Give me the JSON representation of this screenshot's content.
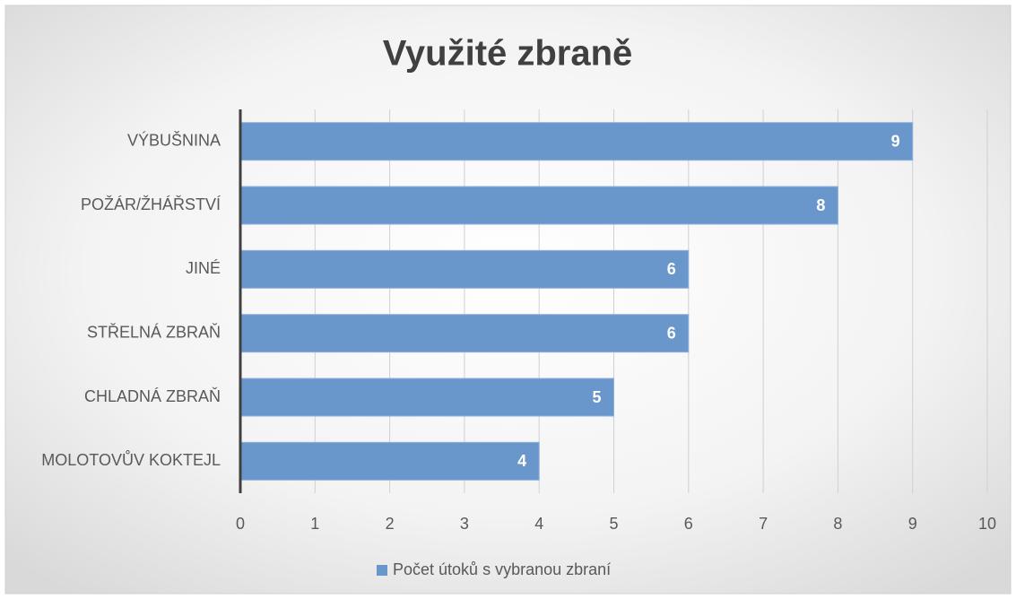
{
  "chart_data": {
    "type": "bar",
    "orientation": "horizontal",
    "title": "Využité zbraně",
    "categories": [
      "VÝBUŠNINA",
      "POŽÁR/ŽHÁŘSTVÍ",
      "JINÉ",
      "STŘELNÁ ZBRAŇ",
      "CHLADNÁ ZBRAŇ",
      "MOLOTOVŮV KOKTEJL"
    ],
    "series": [
      {
        "name": "Počet útoků s vybranou zbraní",
        "color": "#6a97cb",
        "values": [
          9,
          8,
          6,
          6,
          5,
          4
        ]
      }
    ],
    "xlim": [
      0,
      10
    ],
    "xticks": [
      0,
      1,
      2,
      3,
      4,
      5,
      6,
      7,
      8,
      9,
      10
    ],
    "grid": true,
    "legend": "bottom"
  }
}
